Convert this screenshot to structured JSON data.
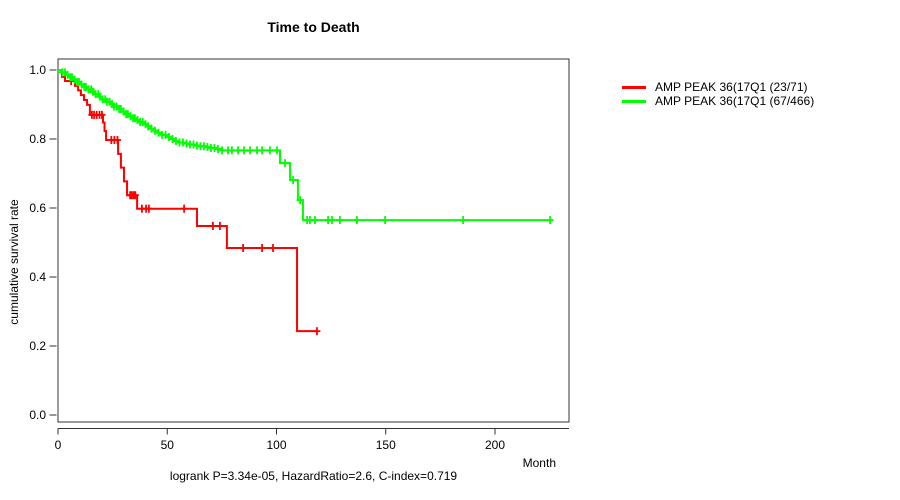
{
  "chart_data": {
    "type": "line",
    "subtype": "kaplan-meier-step",
    "title": "Time to Death",
    "xlabel": "Month",
    "ylabel": "cumulative survival rate",
    "footnote": "logrank P=3.34e-05, HazardRatio=2.6, C-index=0.719",
    "x_ticks": [
      0,
      50,
      100,
      150,
      200
    ],
    "y_ticks": [
      0.0,
      0.2,
      0.4,
      0.6,
      0.8,
      1.0
    ],
    "xlim": [
      0,
      234
    ],
    "ylim": [
      0,
      1
    ],
    "grid": false,
    "legend_position": "right-outside",
    "series": [
      {
        "name": "AMP PEAK 36(17Q1 (23/71)",
        "color": "#ff0000",
        "end": 118.5,
        "steps": [
          [
            0,
            1.0
          ],
          [
            1.8,
            0.98
          ],
          [
            3.2,
            0.968
          ],
          [
            7.8,
            0.954
          ],
          [
            9.2,
            0.941
          ],
          [
            10.5,
            0.927
          ],
          [
            11.9,
            0.913
          ],
          [
            13.3,
            0.899
          ],
          [
            14.6,
            0.87
          ],
          [
            20.6,
            0.848
          ],
          [
            21.3,
            0.823
          ],
          [
            22,
            0.797
          ],
          [
            27.5,
            0.757
          ],
          [
            28.8,
            0.717
          ],
          [
            30.2,
            0.677
          ],
          [
            31.6,
            0.637
          ],
          [
            36.2,
            0.598
          ],
          [
            63.6,
            0.548
          ],
          [
            77.3,
            0.484
          ],
          [
            109.4,
            0.243
          ]
        ],
        "censors": [
          6,
          15.5,
          16.5,
          17.7,
          19,
          20.1,
          24.4,
          25.8,
          27.2,
          33,
          33.8,
          34.6,
          35.4,
          38.4,
          40.3,
          41.6,
          57.7,
          70.9,
          74.1,
          84.7,
          93.4,
          98.4,
          118.5
        ]
      },
      {
        "name": "AMP PEAK 36(17Q1 (67/466)",
        "color": "#00ff00",
        "end": 226,
        "steps": [
          [
            0,
            1.0
          ],
          [
            1.7,
            0.993
          ],
          [
            3.4,
            0.986
          ],
          [
            5.1,
            0.979
          ],
          [
            6.8,
            0.972
          ],
          [
            8.5,
            0.965
          ],
          [
            10.2,
            0.958
          ],
          [
            11.9,
            0.951
          ],
          [
            13.6,
            0.944
          ],
          [
            15.3,
            0.937
          ],
          [
            17,
            0.93
          ],
          [
            18.7,
            0.923
          ],
          [
            20.4,
            0.915
          ],
          [
            22.1,
            0.908
          ],
          [
            23.8,
            0.901
          ],
          [
            25.5,
            0.894
          ],
          [
            27.2,
            0.887
          ],
          [
            28.9,
            0.88
          ],
          [
            30.6,
            0.872
          ],
          [
            32.3,
            0.866
          ],
          [
            34,
            0.86
          ],
          [
            35.7,
            0.855
          ],
          [
            37.4,
            0.849
          ],
          [
            39.1,
            0.843
          ],
          [
            40.8,
            0.837
          ],
          [
            42.5,
            0.83
          ],
          [
            44.2,
            0.824
          ],
          [
            45.9,
            0.818
          ],
          [
            47.6,
            0.812
          ],
          [
            49.3,
            0.806
          ],
          [
            51,
            0.8
          ],
          [
            52.7,
            0.794
          ],
          [
            55,
            0.79
          ],
          [
            57.5,
            0.787
          ],
          [
            60,
            0.784
          ],
          [
            62.5,
            0.781
          ],
          [
            65,
            0.779
          ],
          [
            67.5,
            0.777
          ],
          [
            70,
            0.774
          ],
          [
            72.5,
            0.771
          ],
          [
            75,
            0.767
          ],
          [
            101.6,
            0.73
          ],
          [
            106.2,
            0.681
          ],
          [
            109.8,
            0.623
          ],
          [
            112.1,
            0.565
          ]
        ],
        "censors": [
          2,
          3.2,
          4.4,
          5.6,
          6.4,
          7.6,
          8.8,
          9.6,
          10.8,
          12,
          12.8,
          14,
          15.2,
          16,
          17.2,
          18.4,
          19.2,
          20.4,
          21.6,
          22.4,
          23.6,
          24.8,
          25.6,
          26.8,
          28,
          28.8,
          30,
          31.2,
          32,
          33.2,
          34.4,
          35.2,
          36.4,
          37.6,
          38.8,
          40,
          41.2,
          42.8,
          44.4,
          46,
          47.6,
          49.2,
          50.8,
          52.4,
          54,
          55.6,
          57.2,
          58.8,
          60.4,
          62,
          63.6,
          65.2,
          66.8,
          68.4,
          70,
          71.6,
          73.2,
          75.1,
          77.8,
          79.6,
          82.4,
          85.1,
          87.9,
          91.1,
          93.4,
          97,
          100.2,
          103.9,
          107.6,
          110.8,
          114,
          115.3,
          117.6,
          123.6,
          125.4,
          129,
          136.8,
          149.7,
          185.4,
          225.2
        ]
      }
    ]
  }
}
